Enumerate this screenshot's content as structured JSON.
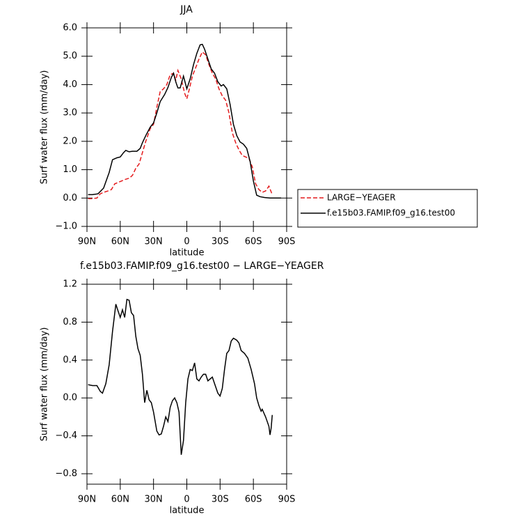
{
  "chart_data": [
    {
      "type": "line",
      "title": "JJA",
      "x_label": "latitude",
      "y_label": "Surf water flux (mm/day)",
      "xlim": [
        90,
        -90
      ],
      "xticks": [
        {
          "value": 90,
          "label": "90N"
        },
        {
          "value": 60,
          "label": "60N"
        },
        {
          "value": 30,
          "label": "30N"
        },
        0,
        {
          "value": -30,
          "label": "30S"
        },
        {
          "value": -60,
          "label": "60S"
        },
        {
          "value": -90,
          "label": "90S"
        }
      ],
      "ylim": [
        -1,
        6
      ],
      "yticks": [
        {
          "value": 6,
          "label": "6.0"
        },
        {
          "value": 5,
          "label": "5.0"
        },
        {
          "value": 4,
          "label": "4.0"
        },
        {
          "value": 3,
          "label": "3.0"
        },
        {
          "value": 2,
          "label": "2.0"
        },
        {
          "value": 1,
          "label": "1.0"
        },
        {
          "value": 0,
          "label": "0.0"
        },
        {
          "value": -1,
          "label": "−1.0"
        }
      ],
      "legend": "right",
      "series": [
        {
          "name": "LARGE−YEAGER",
          "color": "#e41a1c",
          "line_style": "dashed",
          "x": [
            89,
            85,
            81,
            78,
            75,
            71,
            68,
            65,
            62,
            59,
            56,
            52,
            49,
            46,
            43,
            40,
            37,
            33,
            30,
            27,
            24,
            21,
            18,
            15,
            12,
            10,
            8,
            5,
            2,
            0,
            -2,
            -5,
            -8,
            -11,
            -14,
            -17,
            -20,
            -23,
            -26,
            -29,
            -32,
            -35,
            -38,
            -41,
            -44,
            -47,
            -50,
            -53,
            -56,
            -59,
            -62,
            -65,
            -68,
            -71,
            -74,
            -77
          ],
          "values": [
            -0.02,
            -0.02,
            0.0,
            0.15,
            0.2,
            0.25,
            0.3,
            0.5,
            0.55,
            0.6,
            0.65,
            0.7,
            0.8,
            1.05,
            1.2,
            1.6,
            2.0,
            2.45,
            2.6,
            3.2,
            3.75,
            3.85,
            4.0,
            4.35,
            4.4,
            4.15,
            4.5,
            4.2,
            3.7,
            3.5,
            3.8,
            4.3,
            4.6,
            4.9,
            5.15,
            5.05,
            4.7,
            4.4,
            4.2,
            3.85,
            3.6,
            3.45,
            3.0,
            2.3,
            1.95,
            1.7,
            1.5,
            1.45,
            1.4,
            1.1,
            0.5,
            0.3,
            0.2,
            0.25,
            0.42,
            0.12
          ]
        },
        {
          "name": "f.e15b03.FAMIP.f09_g16.test00",
          "color": "#000000",
          "line_style": "solid",
          "x": [
            89,
            85,
            80,
            75,
            70,
            67,
            63,
            60,
            57,
            55,
            52,
            49,
            45,
            42,
            40,
            37,
            33,
            30,
            27,
            24,
            20,
            17,
            14,
            12,
            10,
            8,
            6,
            3,
            0,
            -3,
            -6,
            -9,
            -12,
            -14,
            -16,
            -19,
            -22,
            -25,
            -28,
            -31,
            -33,
            -36,
            -39,
            -42,
            -45,
            -48,
            -51,
            -54,
            -57,
            -60,
            -63,
            -66,
            -70,
            -75,
            -80,
            -85
          ],
          "values": [
            0.12,
            0.12,
            0.15,
            0.35,
            0.9,
            1.35,
            1.42,
            1.45,
            1.6,
            1.68,
            1.63,
            1.65,
            1.65,
            1.75,
            1.95,
            2.2,
            2.5,
            2.65,
            3.0,
            3.4,
            3.65,
            3.9,
            4.25,
            4.4,
            4.1,
            3.88,
            3.88,
            4.3,
            3.85,
            4.2,
            4.7,
            5.1,
            5.4,
            5.42,
            5.25,
            4.9,
            4.55,
            4.4,
            4.1,
            3.95,
            4.0,
            3.85,
            3.3,
            2.6,
            2.2,
            1.98,
            1.9,
            1.75,
            1.3,
            0.6,
            0.1,
            0.05,
            0.02,
            0.0,
            0.0,
            0.0
          ]
        }
      ]
    },
    {
      "type": "line",
      "title": "f.e15b03.FAMIP.f09_g16.test00 − LARGE−YEAGER",
      "x_label": "latitude",
      "y_label": "Surf water flux (mm/day)",
      "xlim": [
        90,
        -90
      ],
      "xticks": [
        {
          "value": 90,
          "label": "90N"
        },
        {
          "value": 60,
          "label": "60N"
        },
        {
          "value": 30,
          "label": "30N"
        },
        0,
        {
          "value": -30,
          "label": "30S"
        },
        {
          "value": -60,
          "label": "60S"
        },
        {
          "value": -90,
          "label": "90S"
        }
      ],
      "ylim": [
        -0.91,
        1.2
      ],
      "yticks": [
        {
          "value": 1.2,
          "label": "1.2"
        },
        {
          "value": 0.8,
          "label": "0.8"
        },
        {
          "value": 0.4,
          "label": "0.4"
        },
        {
          "value": 0,
          "label": "0.0"
        },
        {
          "value": -0.4,
          "label": "−0.4"
        },
        {
          "value": -0.8,
          "label": "−0.8"
        }
      ],
      "color": "#000000",
      "x": [
        89,
        85,
        81,
        78,
        76,
        73,
        70,
        67,
        64,
        62,
        60,
        58,
        56,
        54,
        52,
        50,
        48,
        46,
        44,
        42,
        40,
        38,
        36,
        34,
        32,
        30,
        27,
        25,
        23,
        21,
        19,
        17,
        15,
        13,
        11,
        9,
        7,
        5,
        3,
        1,
        -1,
        -3,
        -5,
        -7,
        -9,
        -11,
        -13,
        -15,
        -17,
        -19,
        -21,
        -23,
        -25,
        -28,
        -30,
        -32,
        -34,
        -36,
        -38,
        -40,
        -42,
        -45,
        -47,
        -49,
        -52,
        -55,
        -58,
        -61,
        -63,
        -65,
        -67,
        -68,
        -71,
        -74,
        -75,
        -76,
        -77
      ],
      "values": [
        0.14,
        0.13,
        0.13,
        0.07,
        0.05,
        0.15,
        0.35,
        0.7,
        0.99,
        0.92,
        0.85,
        0.93,
        0.85,
        1.04,
        1.03,
        0.9,
        0.87,
        0.65,
        0.52,
        0.45,
        0.25,
        -0.05,
        0.08,
        -0.02,
        -0.05,
        -0.15,
        -0.35,
        -0.39,
        -0.38,
        -0.3,
        -0.2,
        -0.25,
        -0.1,
        -0.03,
        0.0,
        -0.05,
        -0.15,
        -0.6,
        -0.45,
        -0.05,
        0.2,
        0.3,
        0.29,
        0.37,
        0.2,
        0.18,
        0.22,
        0.25,
        0.25,
        0.18,
        0.2,
        0.22,
        0.15,
        0.05,
        0.02,
        0.1,
        0.3,
        0.47,
        0.5,
        0.6,
        0.63,
        0.61,
        0.58,
        0.5,
        0.47,
        0.42,
        0.3,
        0.15,
        0.0,
        -0.08,
        -0.14,
        -0.12,
        -0.2,
        -0.3,
        -0.39,
        -0.32,
        -0.18
      ]
    }
  ]
}
